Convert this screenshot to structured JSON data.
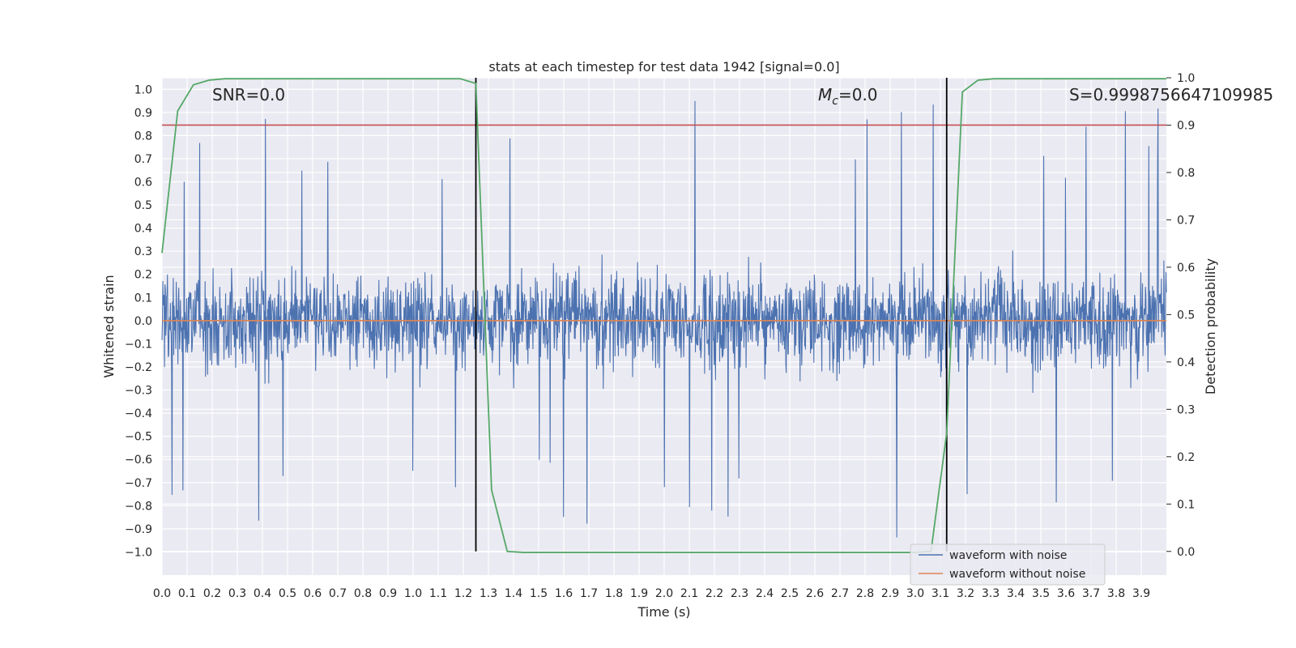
{
  "chart_data": {
    "type": "line",
    "title": "stats at each timestep for test data 1942 [signal=0.0]",
    "xlabel": "Time (s)",
    "ylabel_left": "Whitened strain",
    "ylabel_right": "Detection probability",
    "xlim": [
      0.0,
      4.0
    ],
    "ylim_left": [
      -1.1,
      1.05
    ],
    "ylim_right": [
      -0.05,
      1.0
    ],
    "x_ticks": [
      "0.0",
      "0.1",
      "0.2",
      "0.3",
      "0.4",
      "0.5",
      "0.6",
      "0.7",
      "0.8",
      "0.9",
      "1.0",
      "1.1",
      "1.2",
      "1.3",
      "1.4",
      "1.5",
      "1.6",
      "1.7",
      "1.8",
      "1.9",
      "2.0",
      "2.1",
      "2.2",
      "2.3",
      "2.4",
      "2.5",
      "2.6",
      "2.7",
      "2.8",
      "2.9",
      "3.0",
      "3.1",
      "3.2",
      "3.3",
      "3.4",
      "3.5",
      "3.6",
      "3.7",
      "3.8",
      "3.9"
    ],
    "y_ticks_left": [
      "1.0",
      "0.9",
      "0.8",
      "0.7",
      "0.6",
      "0.5",
      "0.4",
      "0.3",
      "0.2",
      "0.1",
      "0.0",
      "−0.1",
      "−0.2",
      "−0.3",
      "−0.4",
      "−0.5",
      "−0.6",
      "−0.7",
      "−0.8",
      "−0.9",
      "−1.0"
    ],
    "y_ticks_right": [
      "1.0",
      "0.9",
      "0.8",
      "0.7",
      "0.6",
      "0.5",
      "0.4",
      "0.3",
      "0.2",
      "0.1",
      "0.0"
    ],
    "annotations": {
      "snr": "SNR=0.0",
      "mc_symbol": "M",
      "mc_sub": "c",
      "mc_value": "=0.0",
      "s": "S=0.9998756647109985"
    },
    "threshold": 0.9,
    "vlines_x": [
      1.25,
      3.125
    ],
    "series": [
      {
        "name": "waveform with noise",
        "color": "#4c72b0",
        "axis": "left",
        "note": "dense noise, approx amplitude range -1.0 to 0.95"
      },
      {
        "name": "waveform without noise",
        "color": "#dd8452",
        "axis": "left",
        "x": [
          0.0,
          4.0
        ],
        "values": [
          0.0,
          0.0
        ]
      },
      {
        "name": "detection probability",
        "color": "#55a868",
        "axis": "right",
        "x": [
          0.0,
          0.0625,
          0.125,
          0.1875,
          0.25,
          0.5,
          0.75,
          1.0,
          1.1875,
          1.25,
          1.3125,
          1.375,
          1.4375,
          1.5,
          2.0,
          2.5,
          3.0,
          3.0625,
          3.125,
          3.1875,
          3.25,
          3.3125,
          3.5,
          3.75,
          4.0
        ],
        "values": [
          0.63,
          0.93,
          0.985,
          0.995,
          0.998,
          0.998,
          0.998,
          0.998,
          0.998,
          0.988,
          0.13,
          0.0,
          -0.002,
          -0.002,
          -0.002,
          -0.002,
          -0.002,
          0.0,
          0.25,
          0.97,
          0.995,
          0.998,
          0.998,
          0.998,
          0.998
        ]
      }
    ],
    "threshold_color": "#c44e52",
    "vline_color": "#000000",
    "legend_location": "lower-right",
    "legend": [
      "waveform with noise",
      "waveform without noise"
    ],
    "grid": true
  }
}
